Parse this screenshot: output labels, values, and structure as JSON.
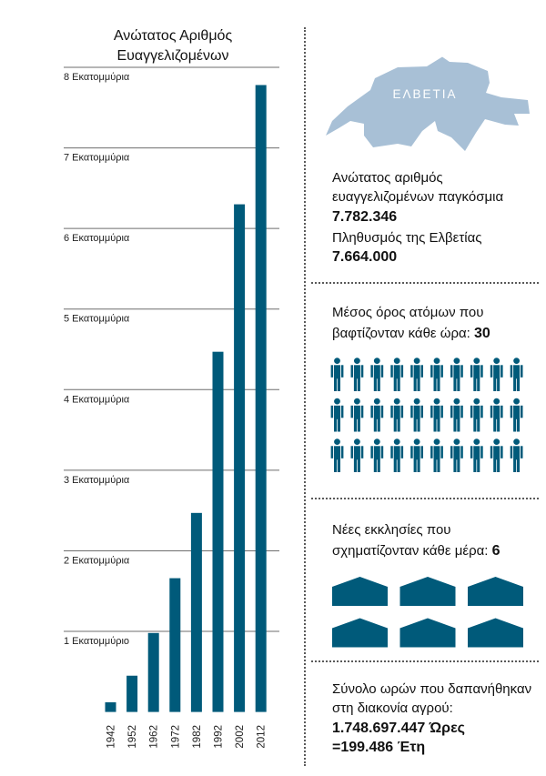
{
  "chart_data": {
    "type": "bar",
    "title_lines": [
      "Ανώτατος Αριθμός",
      "Ευαγγελιζομένων"
    ],
    "categories": [
      "1942",
      "1952",
      "1962",
      "1972",
      "1982",
      "1992",
      "2002",
      "2012"
    ],
    "values": [
      0.12,
      0.45,
      0.98,
      1.66,
      2.47,
      4.47,
      6.3,
      7.78
    ],
    "y_ticks": [
      8,
      7,
      6,
      5,
      4,
      3,
      2,
      1
    ],
    "y_tick_labels": [
      "8 Εκατομμύρια",
      "7 Εκατομμύρια",
      "6 Εκατομμύρια",
      "5 Εκατομμύρια",
      "4 Εκατομμύρια",
      "3 Εκατομμύρια",
      "2 Εκατομμύρια",
      "1 Εκατομμύριο"
    ],
    "ylim": [
      0,
      8
    ],
    "grid": true
  },
  "map": {
    "label": "ΕΛΒΕΤΙΑ"
  },
  "world_max": {
    "line1": "Ανώτατος αριθμός",
    "line2": "ευαγγελιζομένων παγκόσμια",
    "value": "7.782.346"
  },
  "population": {
    "label": "Πληθυσμός της Ελβετίας",
    "value": "7.664.000"
  },
  "baptisms": {
    "line1": "Μέσος όρος ατόμων που",
    "line2": "βαφτίζονταν κάθε ώρα: ",
    "value": "30"
  },
  "congregations": {
    "line1": "Νέες εκκλησίες που",
    "line2": "σχηματίζονταν κάθε μέρα: ",
    "value": "6"
  },
  "field_service": {
    "line1": "Σύνολο ωρών που δαπανήθηκαν",
    "line2": "στη διακονία αγρού:",
    "hours": "1.748.697.447 Ώρες",
    "years": "=199.486 Έτη"
  },
  "icons": {
    "map": "switzerland-map-icon",
    "person": "person-icon",
    "church": "church-icon"
  },
  "colors": {
    "bar": "#005a7a",
    "icon": "#005a7a",
    "map": "#a8c0d6",
    "map_label": "#ffffff",
    "grid": "#6e6e6e",
    "text": "#111111"
  }
}
